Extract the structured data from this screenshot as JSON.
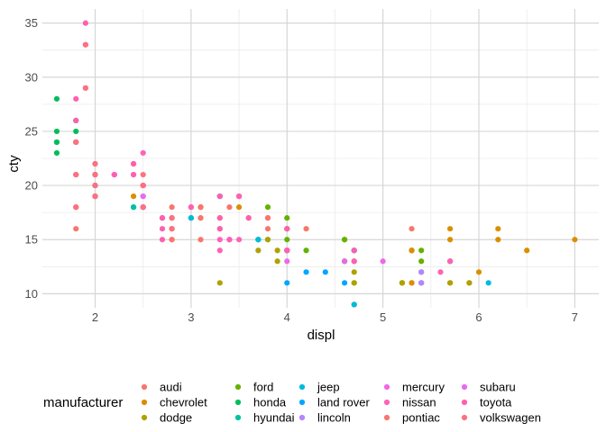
{
  "chart_data": {
    "type": "scatter",
    "xlabel": "displ",
    "ylabel": "cty",
    "xlim": [
      1.45,
      7.25
    ],
    "ylim": [
      8.7,
      36.3
    ],
    "xticks": [
      2,
      3,
      4,
      5,
      6,
      7
    ],
    "yticks": [
      10,
      15,
      20,
      25,
      30,
      35
    ],
    "grid": true,
    "legend": {
      "title": "manufacturer",
      "position": "bottom",
      "columns": 5
    },
    "series": [
      {
        "name": "audi",
        "color": "#F8766D",
        "points": [
          [
            1.8,
            18
          ],
          [
            1.8,
            21
          ],
          [
            2.0,
            20
          ],
          [
            2.0,
            21
          ],
          [
            2.8,
            16
          ],
          [
            2.8,
            18
          ],
          [
            3.1,
            18
          ],
          [
            1.8,
            18
          ],
          [
            1.8,
            16
          ],
          [
            2.0,
            20
          ],
          [
            2.0,
            19
          ],
          [
            2.8,
            15
          ],
          [
            2.8,
            17
          ],
          [
            3.1,
            17
          ],
          [
            3.1,
            15
          ],
          [
            2.8,
            15
          ],
          [
            3.1,
            17
          ],
          [
            4.2,
            16
          ]
        ]
      },
      {
        "name": "chevrolet",
        "color": "#DB8E00",
        "points": [
          [
            5.3,
            14
          ],
          [
            5.3,
            11
          ],
          [
            5.3,
            14
          ],
          [
            5.7,
            13
          ],
          [
            6.0,
            12
          ],
          [
            5.7,
            16
          ],
          [
            5.7,
            15
          ],
          [
            6.2,
            16
          ],
          [
            6.2,
            15
          ],
          [
            7.0,
            15
          ],
          [
            5.3,
            14
          ],
          [
            5.3,
            11
          ],
          [
            5.7,
            11
          ],
          [
            6.5,
            14
          ],
          [
            2.4,
            19
          ],
          [
            2.4,
            22
          ],
          [
            3.1,
            18
          ],
          [
            3.5,
            18
          ],
          [
            3.6,
            17
          ]
        ]
      },
      {
        "name": "dodge",
        "color": "#AEA200",
        "points": [
          [
            2.4,
            18
          ],
          [
            3.0,
            17
          ],
          [
            3.3,
            16
          ],
          [
            3.3,
            17
          ],
          [
            3.8,
            15
          ],
          [
            3.8,
            15
          ],
          [
            4.0,
            16
          ],
          [
            3.7,
            15
          ],
          [
            3.7,
            14
          ],
          [
            3.9,
            13
          ],
          [
            3.9,
            14
          ],
          [
            4.7,
            14
          ],
          [
            4.7,
            11
          ],
          [
            4.7,
            11
          ],
          [
            5.2,
            11
          ],
          [
            5.2,
            11
          ],
          [
            5.7,
            11
          ],
          [
            5.9,
            11
          ],
          [
            4.7,
            12
          ],
          [
            4.7,
            9
          ],
          [
            4.7,
            13
          ],
          [
            5.2,
            11
          ],
          [
            5.9,
            11
          ],
          [
            3.3,
            11
          ]
        ]
      },
      {
        "name": "ford",
        "color": "#64B200",
        "points": [
          [
            4.0,
            14
          ],
          [
            4.0,
            15
          ],
          [
            4.0,
            17
          ],
          [
            4.2,
            14
          ],
          [
            4.6,
            13
          ],
          [
            4.6,
            15
          ],
          [
            5.4,
            11
          ],
          [
            5.4,
            12
          ],
          [
            4.6,
            13
          ],
          [
            5.4,
            14
          ],
          [
            3.8,
            18
          ],
          [
            4.0,
            16
          ],
          [
            4.6,
            15
          ],
          [
            5.4,
            13
          ]
        ]
      },
      {
        "name": "honda",
        "color": "#00BD5C",
        "points": [
          [
            1.6,
            28
          ],
          [
            1.6,
            24
          ],
          [
            1.6,
            25
          ],
          [
            1.6,
            23
          ],
          [
            1.6,
            24
          ],
          [
            1.8,
            26
          ],
          [
            1.8,
            25
          ],
          [
            1.8,
            24
          ],
          [
            2.0,
            21
          ]
        ]
      },
      {
        "name": "hyundai",
        "color": "#00C1A7",
        "points": [
          [
            2.4,
            18
          ],
          [
            2.4,
            18
          ],
          [
            2.5,
            18
          ],
          [
            2.0,
            19
          ],
          [
            2.0,
            20
          ],
          [
            2.7,
            17
          ],
          [
            3.3,
            19
          ],
          [
            3.0,
            17
          ],
          [
            3.7,
            15
          ],
          [
            2.0,
            21
          ]
        ]
      },
      {
        "name": "jeep",
        "color": "#00BADE",
        "points": [
          [
            3.0,
            17
          ],
          [
            3.7,
            15
          ],
          [
            4.0,
            14
          ],
          [
            4.7,
            14
          ],
          [
            4.7,
            9
          ],
          [
            4.7,
            14
          ],
          [
            5.7,
            13
          ],
          [
            6.1,
            11
          ],
          [
            3.3,
            19
          ]
        ]
      },
      {
        "name": "land rover",
        "color": "#00A6FF",
        "points": [
          [
            4.0,
            11
          ],
          [
            4.2,
            12
          ],
          [
            4.4,
            12
          ],
          [
            4.6,
            11
          ]
        ]
      },
      {
        "name": "lincoln",
        "color": "#B385FF",
        "points": [
          [
            5.4,
            11
          ],
          [
            5.4,
            12
          ],
          [
            5.4,
            11
          ]
        ]
      },
      {
        "name": "mercury",
        "color": "#EF67EB",
        "points": [
          [
            4.0,
            14
          ],
          [
            4.0,
            13
          ],
          [
            4.6,
            13
          ],
          [
            5.0,
            13
          ]
        ]
      },
      {
        "name": "nissan",
        "color": "#FF63B6",
        "points": [
          [
            2.4,
            21
          ],
          [
            2.5,
            20
          ],
          [
            3.5,
            19
          ],
          [
            3.5,
            19
          ],
          [
            3.8,
            17
          ],
          [
            2.5,
            23
          ],
          [
            3.3,
            14
          ],
          [
            3.5,
            15
          ],
          [
            5.6,
            12
          ],
          [
            5.7,
            13
          ],
          [
            4.0,
            14
          ],
          [
            3.3,
            15
          ],
          [
            2.5,
            18
          ]
        ]
      },
      {
        "name": "pontiac",
        "color": "#F8766D",
        "points": [
          [
            3.1,
            18
          ],
          [
            3.8,
            17
          ],
          [
            3.8,
            16
          ],
          [
            5.3,
            16
          ],
          [
            3.4,
            18
          ]
        ]
      },
      {
        "name": "subaru",
        "color": "#E76BF3",
        "points": [
          [
            2.5,
            18
          ],
          [
            2.5,
            20
          ],
          [
            2.5,
            19
          ],
          [
            2.5,
            18
          ],
          [
            2.2,
            21
          ],
          [
            2.5,
            19
          ],
          [
            2.5,
            20
          ],
          [
            2.5,
            18
          ],
          [
            2.0,
            20
          ],
          [
            2.0,
            21
          ],
          [
            2.0,
            19
          ],
          [
            2.2,
            21
          ]
        ]
      },
      {
        "name": "toyota",
        "color": "#FF5FB1",
        "points": [
          [
            2.7,
            16
          ],
          [
            2.7,
            15
          ],
          [
            2.7,
            17
          ],
          [
            3.4,
            15
          ],
          [
            3.4,
            15
          ],
          [
            4.0,
            14
          ],
          [
            4.7,
            13
          ],
          [
            2.2,
            21
          ],
          [
            2.4,
            22
          ],
          [
            3.0,
            18
          ],
          [
            3.5,
            19
          ],
          [
            1.8,
            26
          ],
          [
            1.8,
            28
          ],
          [
            1.8,
            24
          ],
          [
            1.9,
            29
          ],
          [
            1.9,
            33
          ],
          [
            1.9,
            35
          ],
          [
            3.0,
            18
          ],
          [
            3.3,
            19
          ],
          [
            3.3,
            17
          ],
          [
            3.3,
            16
          ],
          [
            2.7,
            17
          ],
          [
            4.0,
            16
          ],
          [
            4.7,
            14
          ],
          [
            2.4,
            21
          ],
          [
            3.6,
            17
          ]
        ]
      },
      {
        "name": "volkswagen",
        "color": "#FC717F",
        "points": [
          [
            2.0,
            21
          ],
          [
            2.0,
            19
          ],
          [
            2.0,
            22
          ],
          [
            2.8,
            17
          ],
          [
            2.8,
            16
          ],
          [
            1.8,
            21
          ],
          [
            1.8,
            18
          ],
          [
            2.5,
            21
          ],
          [
            2.8,
            16
          ],
          [
            1.9,
            29
          ],
          [
            2.0,
            21
          ],
          [
            2.5,
            20
          ],
          [
            1.9,
            33
          ],
          [
            2.0,
            22
          ],
          [
            2.8,
            17
          ],
          [
            1.8,
            24
          ],
          [
            1.8,
            24
          ],
          [
            2.0,
            19
          ],
          [
            2.0,
            20
          ],
          [
            2.5,
            18
          ],
          [
            2.5,
            20
          ],
          [
            1.8,
            21
          ]
        ]
      }
    ]
  }
}
